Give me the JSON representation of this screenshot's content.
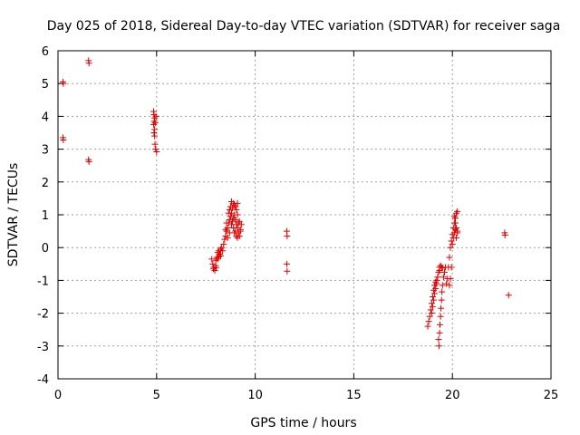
{
  "chart_data": {
    "type": "scatter",
    "title": "Day 025 of 2018, Sidereal Day-to-day VTEC variation (SDTVAR) for receiver saga",
    "xlabel": "GPS time / hours",
    "ylabel": "SDTVAR / TECUs",
    "xlim": [
      0,
      25
    ],
    "ylim": [
      -4,
      6
    ],
    "xticks": [
      0,
      5,
      10,
      15,
      20,
      25
    ],
    "yticks": [
      -4,
      -3,
      -2,
      -1,
      0,
      1,
      2,
      3,
      4,
      5,
      6
    ],
    "xtick_labels": [
      "0",
      "5",
      "10",
      "15",
      "20",
      "25"
    ],
    "ytick_labels": [
      "-4",
      "-3",
      "-2",
      "-1",
      "0",
      "1",
      "2",
      "3",
      "4",
      "5",
      "6"
    ],
    "grid": true,
    "marker": "+",
    "color": "#e00000",
    "series": [
      {
        "name": "SDTVAR",
        "points": [
          [
            0.25,
            5.05
          ],
          [
            0.27,
            5.0
          ],
          [
            0.25,
            3.35
          ],
          [
            0.27,
            3.28
          ],
          [
            1.55,
            5.7
          ],
          [
            1.57,
            5.62
          ],
          [
            1.55,
            2.68
          ],
          [
            1.57,
            2.62
          ],
          [
            4.85,
            4.15
          ],
          [
            4.87,
            4.05
          ],
          [
            4.9,
            3.95
          ],
          [
            4.88,
            3.85
          ],
          [
            4.85,
            3.75
          ],
          [
            4.9,
            3.6
          ],
          [
            4.87,
            3.5
          ],
          [
            4.9,
            3.4
          ],
          [
            4.92,
            3.15
          ],
          [
            4.95,
            3.0
          ],
          [
            5.0,
            2.92
          ],
          [
            4.97,
            4.0
          ],
          [
            4.93,
            3.8
          ],
          [
            7.8,
            -0.35
          ],
          [
            7.85,
            -0.5
          ],
          [
            7.9,
            -0.6
          ],
          [
            7.95,
            -0.7
          ],
          [
            8.0,
            -0.55
          ],
          [
            8.0,
            -0.4
          ],
          [
            7.88,
            -0.65
          ],
          [
            8.02,
            -0.62
          ],
          [
            8.05,
            -0.3
          ],
          [
            8.1,
            -0.15
          ],
          [
            8.1,
            -0.35
          ],
          [
            8.15,
            -0.1
          ],
          [
            8.15,
            -0.28
          ],
          [
            8.2,
            -0.2
          ],
          [
            8.25,
            -0.05
          ],
          [
            8.25,
            -0.25
          ],
          [
            8.3,
            0.0
          ],
          [
            8.35,
            -0.1
          ],
          [
            8.4,
            0.1
          ],
          [
            8.45,
            0.25
          ],
          [
            8.5,
            0.35
          ],
          [
            8.55,
            0.5
          ],
          [
            8.6,
            0.6
          ],
          [
            8.65,
            0.75
          ],
          [
            8.7,
            0.85
          ],
          [
            8.75,
            0.95
          ],
          [
            8.8,
            1.05
          ],
          [
            8.75,
            1.25
          ],
          [
            8.8,
            1.4
          ],
          [
            8.85,
            1.2
          ],
          [
            8.9,
            1.35
          ],
          [
            8.95,
            1.3
          ],
          [
            9.0,
            1.25
          ],
          [
            9.05,
            1.15
          ],
          [
            9.1,
            1.0
          ],
          [
            9.1,
            1.35
          ],
          [
            8.8,
            0.7
          ],
          [
            8.85,
            0.8
          ],
          [
            8.9,
            0.9
          ],
          [
            8.95,
            1.0
          ],
          [
            9.0,
            0.85
          ],
          [
            9.05,
            0.7
          ],
          [
            9.1,
            0.6
          ],
          [
            9.15,
            0.75
          ],
          [
            9.2,
            0.8
          ],
          [
            8.6,
            0.3
          ],
          [
            8.7,
            0.45
          ],
          [
            8.9,
            0.6
          ],
          [
            9.0,
            0.5
          ],
          [
            9.05,
            0.35
          ],
          [
            9.1,
            0.3
          ],
          [
            9.15,
            0.45
          ],
          [
            9.2,
            0.35
          ],
          [
            9.25,
            0.5
          ],
          [
            9.3,
            0.7
          ],
          [
            8.5,
            0.55
          ],
          [
            8.55,
            0.75
          ],
          [
            8.65,
            1.05
          ],
          [
            8.7,
            1.15
          ],
          [
            8.95,
            0.45
          ],
          [
            9.25,
            0.55
          ],
          [
            11.6,
            0.5
          ],
          [
            11.62,
            0.35
          ],
          [
            11.6,
            -0.5
          ],
          [
            11.62,
            -0.72
          ],
          [
            18.75,
            -2.4
          ],
          [
            18.8,
            -2.25
          ],
          [
            18.85,
            -2.1
          ],
          [
            18.9,
            -1.9
          ],
          [
            18.95,
            -1.7
          ],
          [
            19.0,
            -1.5
          ],
          [
            19.05,
            -1.3
          ],
          [
            19.1,
            -1.15
          ],
          [
            19.15,
            -1.05
          ],
          [
            19.2,
            -1.0
          ],
          [
            18.95,
            -2.0
          ],
          [
            19.0,
            -1.8
          ],
          [
            19.05,
            -1.6
          ],
          [
            19.1,
            -1.4
          ],
          [
            19.15,
            -1.25
          ],
          [
            19.2,
            -1.1
          ],
          [
            19.25,
            -0.9
          ],
          [
            19.3,
            -0.75
          ],
          [
            19.35,
            -0.6
          ],
          [
            19.4,
            -0.55
          ],
          [
            19.45,
            -0.6
          ],
          [
            19.5,
            -0.62
          ],
          [
            19.35,
            -0.7
          ],
          [
            19.3,
            -2.8
          ],
          [
            19.32,
            -3.0
          ],
          [
            19.35,
            -2.6
          ],
          [
            19.37,
            -2.35
          ],
          [
            19.4,
            -2.1
          ],
          [
            19.42,
            -1.85
          ],
          [
            19.45,
            -1.6
          ],
          [
            19.47,
            -1.35
          ],
          [
            19.5,
            -1.15
          ],
          [
            19.55,
            -0.9
          ],
          [
            19.6,
            -0.75
          ],
          [
            19.65,
            -0.6
          ],
          [
            19.7,
            -1.1
          ],
          [
            19.75,
            -0.95
          ],
          [
            19.8,
            -0.6
          ],
          [
            19.85,
            -0.3
          ],
          [
            19.9,
            0.0
          ],
          [
            19.95,
            0.2
          ],
          [
            20.0,
            0.4
          ],
          [
            20.05,
            0.6
          ],
          [
            20.1,
            0.75
          ],
          [
            20.15,
            0.9
          ],
          [
            20.2,
            1.05
          ],
          [
            20.25,
            1.1
          ],
          [
            19.85,
            -1.15
          ],
          [
            19.9,
            -0.95
          ],
          [
            19.95,
            -0.6
          ],
          [
            20.0,
            0.1
          ],
          [
            20.05,
            0.3
          ],
          [
            20.1,
            0.45
          ],
          [
            20.15,
            0.55
          ],
          [
            20.2,
            0.6
          ],
          [
            20.25,
            0.5
          ],
          [
            20.1,
            0.95
          ],
          [
            20.15,
            0.75
          ],
          [
            20.2,
            0.3
          ],
          [
            20.25,
            0.45
          ],
          [
            22.65,
            0.45
          ],
          [
            22.67,
            0.38
          ],
          [
            22.85,
            -1.45
          ]
        ]
      }
    ]
  }
}
